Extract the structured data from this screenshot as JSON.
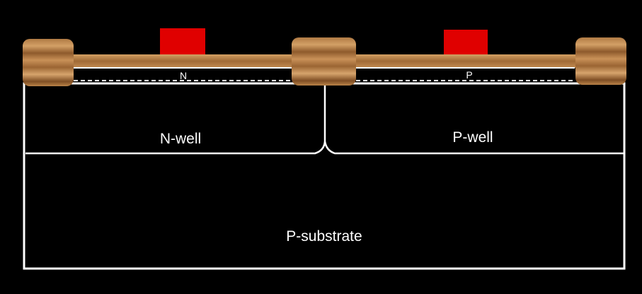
{
  "diagram": {
    "labels": {
      "n_region": "N",
      "p_region": "P",
      "n_well": "N-well",
      "p_well": "P-well",
      "substrate": "P-substrate"
    },
    "colors": {
      "background": "#000000",
      "outline": "#ffffff",
      "gate": "#e00000",
      "oxide_wood_light": "#c89458",
      "oxide_wood_mid": "#a86f3a",
      "oxide_wood_dark": "#6b4220"
    }
  }
}
